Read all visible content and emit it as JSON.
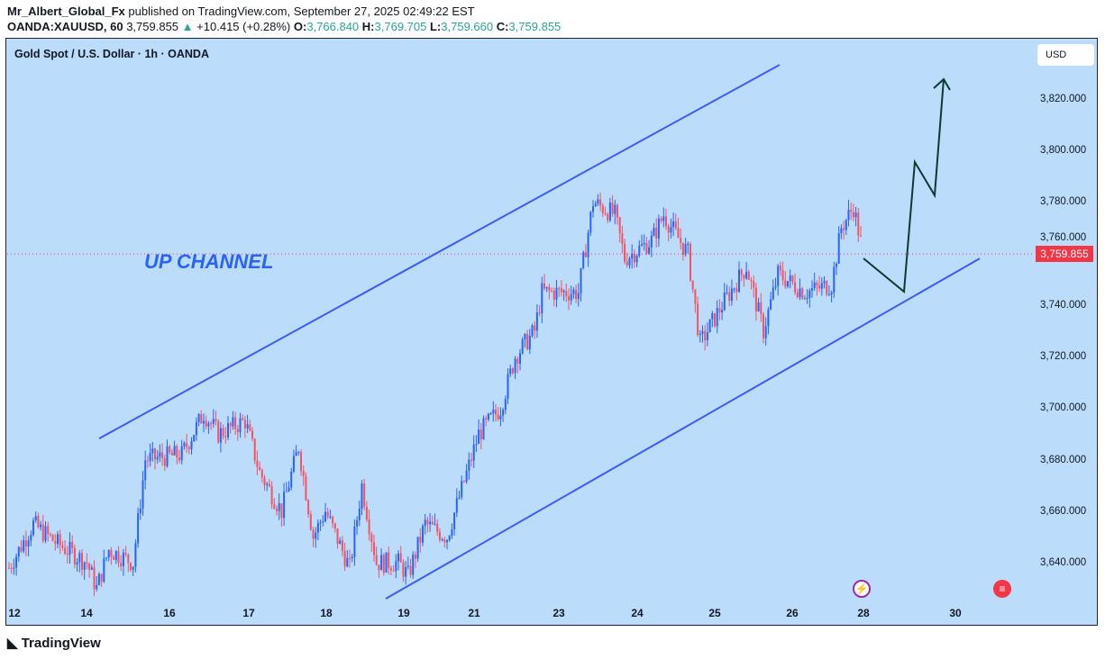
{
  "header": {
    "author": "Mr_Albert_Global_Fx",
    "published": "published on TradingView.com, September 27, 2025 02:49:22 EST",
    "symbol": "OANDA:XAUUSD, 60",
    "last": "3,759.855",
    "change": "+10.415 (+0.28%)",
    "o_label": "O:",
    "o": "3,766.840",
    "h_label": "H:",
    "h": "3,769.705",
    "l_label": "L:",
    "l": "3,759.660",
    "c_label": "C:",
    "c": "3,759.855"
  },
  "chart_title": "Gold Spot / U.S. Dollar · 1h · OANDA",
  "currency": "USD",
  "annotation": "UP CHANNEL",
  "price_label": "3,759.855",
  "brand": "TradingView",
  "colors": {
    "up": "#2962ff",
    "down": "#f7525f",
    "bg": "#bbdcfb",
    "channel": "#3d5afe",
    "projection": "#0b3b2e"
  },
  "chart_data": {
    "type": "candlestick",
    "title": "Gold Spot / U.S. Dollar · 1h · OANDA",
    "ylim": [
      3622,
      3838
    ],
    "y_ticks": [
      "3,640.000",
      "3,660.000",
      "3,680.000",
      "3,700.000",
      "3,720.000",
      "3,740.000",
      "3,760.000",
      "3,780.000",
      "3,800.000",
      "3,820.000"
    ],
    "y_tick_values": [
      3640,
      3660,
      3680,
      3700,
      3720,
      3740,
      3760,
      3780,
      3800,
      3820
    ],
    "x_ticks": [
      "12",
      "14",
      "16",
      "17",
      "18",
      "19",
      "21",
      "23",
      "24",
      "25",
      "26",
      "28",
      "30"
    ],
    "close_path": [
      [
        0,
        3638
      ],
      [
        10,
        3655
      ],
      [
        19,
        3648
      ],
      [
        32,
        3640
      ],
      [
        36,
        3630
      ],
      [
        41,
        3645
      ],
      [
        51,
        3640
      ],
      [
        56,
        3680
      ],
      [
        71,
        3682
      ],
      [
        80,
        3698
      ],
      [
        86,
        3690
      ],
      [
        97,
        3695
      ],
      [
        103,
        3675
      ],
      [
        112,
        3660
      ],
      [
        119,
        3685
      ],
      [
        125,
        3650
      ],
      [
        130,
        3660
      ],
      [
        140,
        3638
      ],
      [
        145,
        3670
      ],
      [
        151,
        3640
      ],
      [
        160,
        3640
      ],
      [
        164,
        3635
      ],
      [
        171,
        3655
      ],
      [
        180,
        3650
      ],
      [
        193,
        3690
      ],
      [
        202,
        3700
      ],
      [
        208,
        3720
      ],
      [
        216,
        3730
      ],
      [
        219,
        3745
      ],
      [
        234,
        3745
      ],
      [
        240,
        3780
      ],
      [
        249,
        3775
      ],
      [
        253,
        3758
      ],
      [
        264,
        3765
      ],
      [
        269,
        3775
      ],
      [
        279,
        3760
      ],
      [
        284,
        3725
      ],
      [
        293,
        3740
      ],
      [
        303,
        3755
      ],
      [
        310,
        3730
      ],
      [
        316,
        3752
      ],
      [
        327,
        3745
      ],
      [
        338,
        3748
      ],
      [
        342,
        3770
      ],
      [
        347,
        3778
      ],
      [
        351,
        3760
      ]
    ],
    "last_price": 3759.855,
    "channel": {
      "upper": [
        3688.2,
        3833.3
      ],
      "lower": [
        3626,
        3758.1
      ]
    }
  }
}
